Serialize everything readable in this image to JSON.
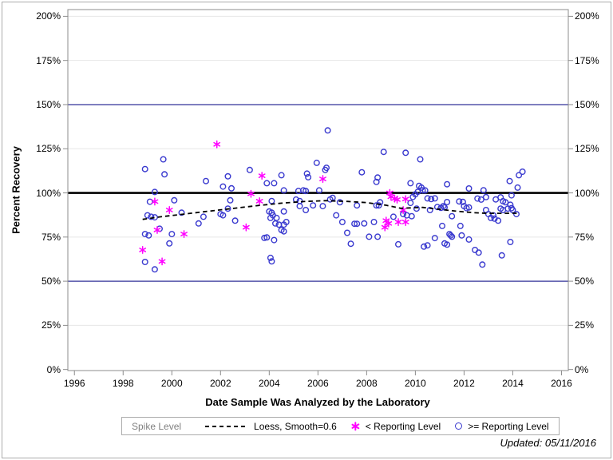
{
  "window": {
    "updated_note": "Updated: 05/11/2016"
  },
  "legend": {
    "title": "Spike Level",
    "entries": [
      {
        "label": "Loess, Smooth=0.6",
        "marker": "dashed-line",
        "color": "#000000"
      },
      {
        "label": "< Reporting Level",
        "marker": "asterisk",
        "color": "#ff00ff"
      },
      {
        "label": ">= Reporting Level",
        "marker": "circle",
        "color": "#3a3acf"
      }
    ]
  },
  "chart_data": {
    "type": "scatter",
    "title": "",
    "xlabel": "Date Sample Was Analyzed by the Laboratory",
    "ylabel": "Percent Recovery",
    "x_domain": [
      1995.73,
      2016.28
    ],
    "y_domain": [
      -0.6,
      203.8
    ],
    "x_ticks": [
      1996,
      1998,
      2000,
      2002,
      2004,
      2006,
      2008,
      2010,
      2012,
      2014,
      2016
    ],
    "y_ticks": [
      0,
      25,
      50,
      75,
      100,
      125,
      150,
      175,
      200
    ],
    "y_tick_suffix": "%",
    "grid_on": true,
    "gridline_values": [
      25,
      75,
      125,
      175,
      200
    ],
    "grid_color": "#e7e7e7",
    "frame_color": "#8c8c8c",
    "legend_position": "bottom",
    "reference_lines": [
      {
        "y": 50,
        "color": "#333399",
        "width": 1.2
      },
      {
        "y": 100,
        "color": "#000000",
        "width": 2.6
      },
      {
        "y": 150,
        "color": "#333399",
        "width": 1.2
      }
    ],
    "series": [
      {
        "name": ">= Reporting Level",
        "marker": "circle",
        "color": "#3a3acf",
        "points": [
          [
            1998.9,
            113.5
          ],
          [
            1999.65,
            119
          ],
          [
            1999.7,
            110.5
          ],
          [
            1999.3,
            100.5
          ],
          [
            1999.1,
            95
          ],
          [
            2000.1,
            95.8
          ],
          [
            2000.4,
            88.8
          ],
          [
            1999,
            87.3
          ],
          [
            1999.15,
            86.5
          ],
          [
            1999.3,
            86.2
          ],
          [
            1999.5,
            79.7
          ],
          [
            1998.9,
            76.7
          ],
          [
            1999.05,
            75.9
          ],
          [
            2000,
            76.7
          ],
          [
            1999.9,
            71.4
          ],
          [
            1998.9,
            60.9
          ],
          [
            1999.3,
            56.7
          ],
          [
            2001.4,
            106.7
          ],
          [
            2001.3,
            86.5
          ],
          [
            2001.1,
            82.7
          ],
          [
            2002,
            88
          ],
          [
            2002.1,
            87.3
          ],
          [
            2002.3,
            91.1
          ],
          [
            2002.6,
            84.3
          ],
          [
            2002.1,
            103.6
          ],
          [
            2002.3,
            109.4
          ],
          [
            2002.45,
            102.6
          ],
          [
            2002.4,
            95.8
          ],
          [
            2003.2,
            113
          ],
          [
            2003.9,
            105.5
          ],
          [
            2003.9,
            74.8
          ],
          [
            2003.8,
            74.5
          ],
          [
            2004.2,
            105.5
          ],
          [
            2004.5,
            110
          ],
          [
            2004.6,
            101.4
          ],
          [
            2004.1,
            95.4
          ],
          [
            2004,
            89.5
          ],
          [
            2004.1,
            88.8
          ],
          [
            2004.15,
            87.3
          ],
          [
            2004.05,
            85.8
          ],
          [
            2004.3,
            85.8
          ],
          [
            2004.6,
            89.5
          ],
          [
            2004.7,
            83.5
          ],
          [
            2004.25,
            82.7
          ],
          [
            2004.4,
            82
          ],
          [
            2004.6,
            82
          ],
          [
            2004.5,
            79
          ],
          [
            2004.6,
            78.2
          ],
          [
            2004.2,
            73.3
          ],
          [
            2004.05,
            63.2
          ],
          [
            2004.1,
            61.2
          ],
          [
            2005.95,
            117
          ],
          [
            2006.3,
            113
          ],
          [
            2006.35,
            114.2
          ],
          [
            2005.55,
            110.9
          ],
          [
            2005.6,
            108.9
          ],
          [
            2006.4,
            135.4
          ],
          [
            2005.2,
            101.1
          ],
          [
            2005.4,
            101.4
          ],
          [
            2005.5,
            101.1
          ],
          [
            2006.05,
            101.4
          ],
          [
            2006.6,
            97.2
          ],
          [
            2005.1,
            96.2
          ],
          [
            2005.25,
            95.4
          ],
          [
            2006.9,
            94.7
          ],
          [
            2005.25,
            92.5
          ],
          [
            2005.5,
            90.3
          ],
          [
            2005.8,
            92.9
          ],
          [
            2006.2,
            92.5
          ],
          [
            2006.5,
            96.3
          ],
          [
            2006.75,
            87.3
          ],
          [
            2007.8,
            111.7
          ],
          [
            2008.7,
            123.2
          ],
          [
            2008.4,
            106.2
          ],
          [
            2008.45,
            108.7
          ],
          [
            2008.55,
            94.7
          ],
          [
            2007.6,
            92.9
          ],
          [
            2008.4,
            92.9
          ],
          [
            2008.5,
            92.9
          ],
          [
            2007,
            83.5
          ],
          [
            2007.5,
            82.5
          ],
          [
            2007.6,
            82.5
          ],
          [
            2007.9,
            82.7
          ],
          [
            2008.3,
            83.5
          ],
          [
            2007.2,
            77.4
          ],
          [
            2008.1,
            75.2
          ],
          [
            2008.45,
            75.2
          ],
          [
            2007.35,
            71.2
          ],
          [
            2009.1,
            86.5
          ],
          [
            2009.3,
            70.9
          ],
          [
            2009.6,
            122.7
          ],
          [
            2009.8,
            105.5
          ],
          [
            2010.15,
            104
          ],
          [
            2010.25,
            103
          ],
          [
            2010.3,
            101.4
          ],
          [
            2010.4,
            101.4
          ],
          [
            2010.1,
            100.6
          ],
          [
            2010.2,
            119
          ],
          [
            2009.8,
            94.3
          ],
          [
            2009.9,
            97.7
          ],
          [
            2010,
            99.2
          ],
          [
            2009.5,
            88
          ],
          [
            2009.65,
            87.3
          ],
          [
            2009.85,
            86.8
          ],
          [
            2010.05,
            91.1
          ],
          [
            2010.5,
            96.9
          ],
          [
            2010.65,
            96.5
          ],
          [
            2010.8,
            96.9
          ],
          [
            2010.6,
            90.3
          ],
          [
            2010.9,
            92
          ],
          [
            2011.05,
            91.5
          ],
          [
            2011.2,
            91.8
          ],
          [
            2011.15,
            92.5
          ],
          [
            2010.8,
            74.4
          ],
          [
            2010.35,
            69.6
          ],
          [
            2010.5,
            70.3
          ],
          [
            2011.3,
            104.9
          ],
          [
            2011.3,
            94.8
          ],
          [
            2011.8,
            95.2
          ],
          [
            2011.95,
            94.9
          ],
          [
            2011.5,
            86.8
          ],
          [
            2011.1,
            81.3
          ],
          [
            2011.4,
            76.7
          ],
          [
            2011.45,
            75.9
          ],
          [
            2011.5,
            75.2
          ],
          [
            2011.2,
            71.4
          ],
          [
            2011.3,
            70.7
          ],
          [
            2011.85,
            81.3
          ],
          [
            2011.9,
            75.9
          ],
          [
            2012.2,
            102.5
          ],
          [
            2012,
            92.5
          ],
          [
            2012.1,
            91.4
          ],
          [
            2012.2,
            91.8
          ],
          [
            2012.2,
            73.6
          ],
          [
            2012.45,
            67.7
          ],
          [
            2012.6,
            66.2
          ],
          [
            2012.75,
            59.4
          ],
          [
            2012.55,
            96.8
          ],
          [
            2012.7,
            96.2
          ],
          [
            2012.9,
            97.6
          ],
          [
            2012.8,
            101.5
          ],
          [
            2012.9,
            90.3
          ],
          [
            2013,
            88
          ],
          [
            2013.2,
            87.3
          ],
          [
            2013.1,
            85.8
          ],
          [
            2013.25,
            85.4
          ],
          [
            2013.4,
            84.3
          ],
          [
            2013.3,
            96.3
          ],
          [
            2013.5,
            97.5
          ],
          [
            2013.6,
            95.3
          ],
          [
            2013.7,
            94.7
          ],
          [
            2013.95,
            98.6
          ],
          [
            2013.5,
            91.1
          ],
          [
            2013.6,
            90.3
          ],
          [
            2013.8,
            91.1
          ],
          [
            2013.95,
            91.4
          ],
          [
            2014,
            90.3
          ],
          [
            2013.9,
            93.3
          ],
          [
            2014.15,
            88
          ],
          [
            2013.55,
            64.6
          ],
          [
            2013.9,
            72.2
          ],
          [
            2013.87,
            106.7
          ],
          [
            2014.25,
            110
          ],
          [
            2014.4,
            112
          ],
          [
            2014.2,
            103
          ]
        ]
      },
      {
        "name": "< Reporting Level",
        "marker": "asterisk",
        "color": "#ff00ff",
        "points": [
          [
            2001.85,
            127.5
          ],
          [
            2003.7,
            109.7
          ],
          [
            2006.2,
            107.9
          ],
          [
            2003.25,
            99.5
          ],
          [
            1999.3,
            95.1
          ],
          [
            2003.6,
            95.3
          ],
          [
            1999.9,
            90.3
          ],
          [
            2003.05,
            80.5
          ],
          [
            1999.4,
            79
          ],
          [
            2000.5,
            76.7
          ],
          [
            1998.8,
            67.7
          ],
          [
            1999.6,
            61.2
          ],
          [
            2008.95,
            100
          ],
          [
            2009,
            97.8
          ],
          [
            2009.15,
            96.8
          ],
          [
            2009.25,
            96.2
          ],
          [
            2009.6,
            96.5
          ],
          [
            2009.5,
            90.3
          ],
          [
            2009.3,
            83.5
          ],
          [
            2009.6,
            83.5
          ],
          [
            2008.8,
            84.3
          ],
          [
            2008.9,
            82.7
          ],
          [
            2008.75,
            80.5
          ]
        ]
      },
      {
        "name": "Loess, Smooth=0.6",
        "marker": "dashed-line",
        "color": "#000000",
        "points": [
          [
            1998.8,
            85
          ],
          [
            1999.5,
            86.4
          ],
          [
            2000.5,
            88
          ],
          [
            2001.5,
            89.6
          ],
          [
            2002.5,
            91.2
          ],
          [
            2003.5,
            92.8
          ],
          [
            2004.5,
            94.2
          ],
          [
            2005.5,
            95.2
          ],
          [
            2006.3,
            95.6
          ],
          [
            2007.2,
            95.2
          ],
          [
            2008,
            94.5
          ],
          [
            2008.8,
            93
          ],
          [
            2009.4,
            91.3
          ],
          [
            2010.3,
            91.8
          ],
          [
            2011,
            90.7
          ],
          [
            2011.7,
            89.6
          ],
          [
            2012.4,
            88.8
          ],
          [
            2013,
            88.4
          ],
          [
            2014.2,
            88.5
          ]
        ]
      }
    ]
  }
}
